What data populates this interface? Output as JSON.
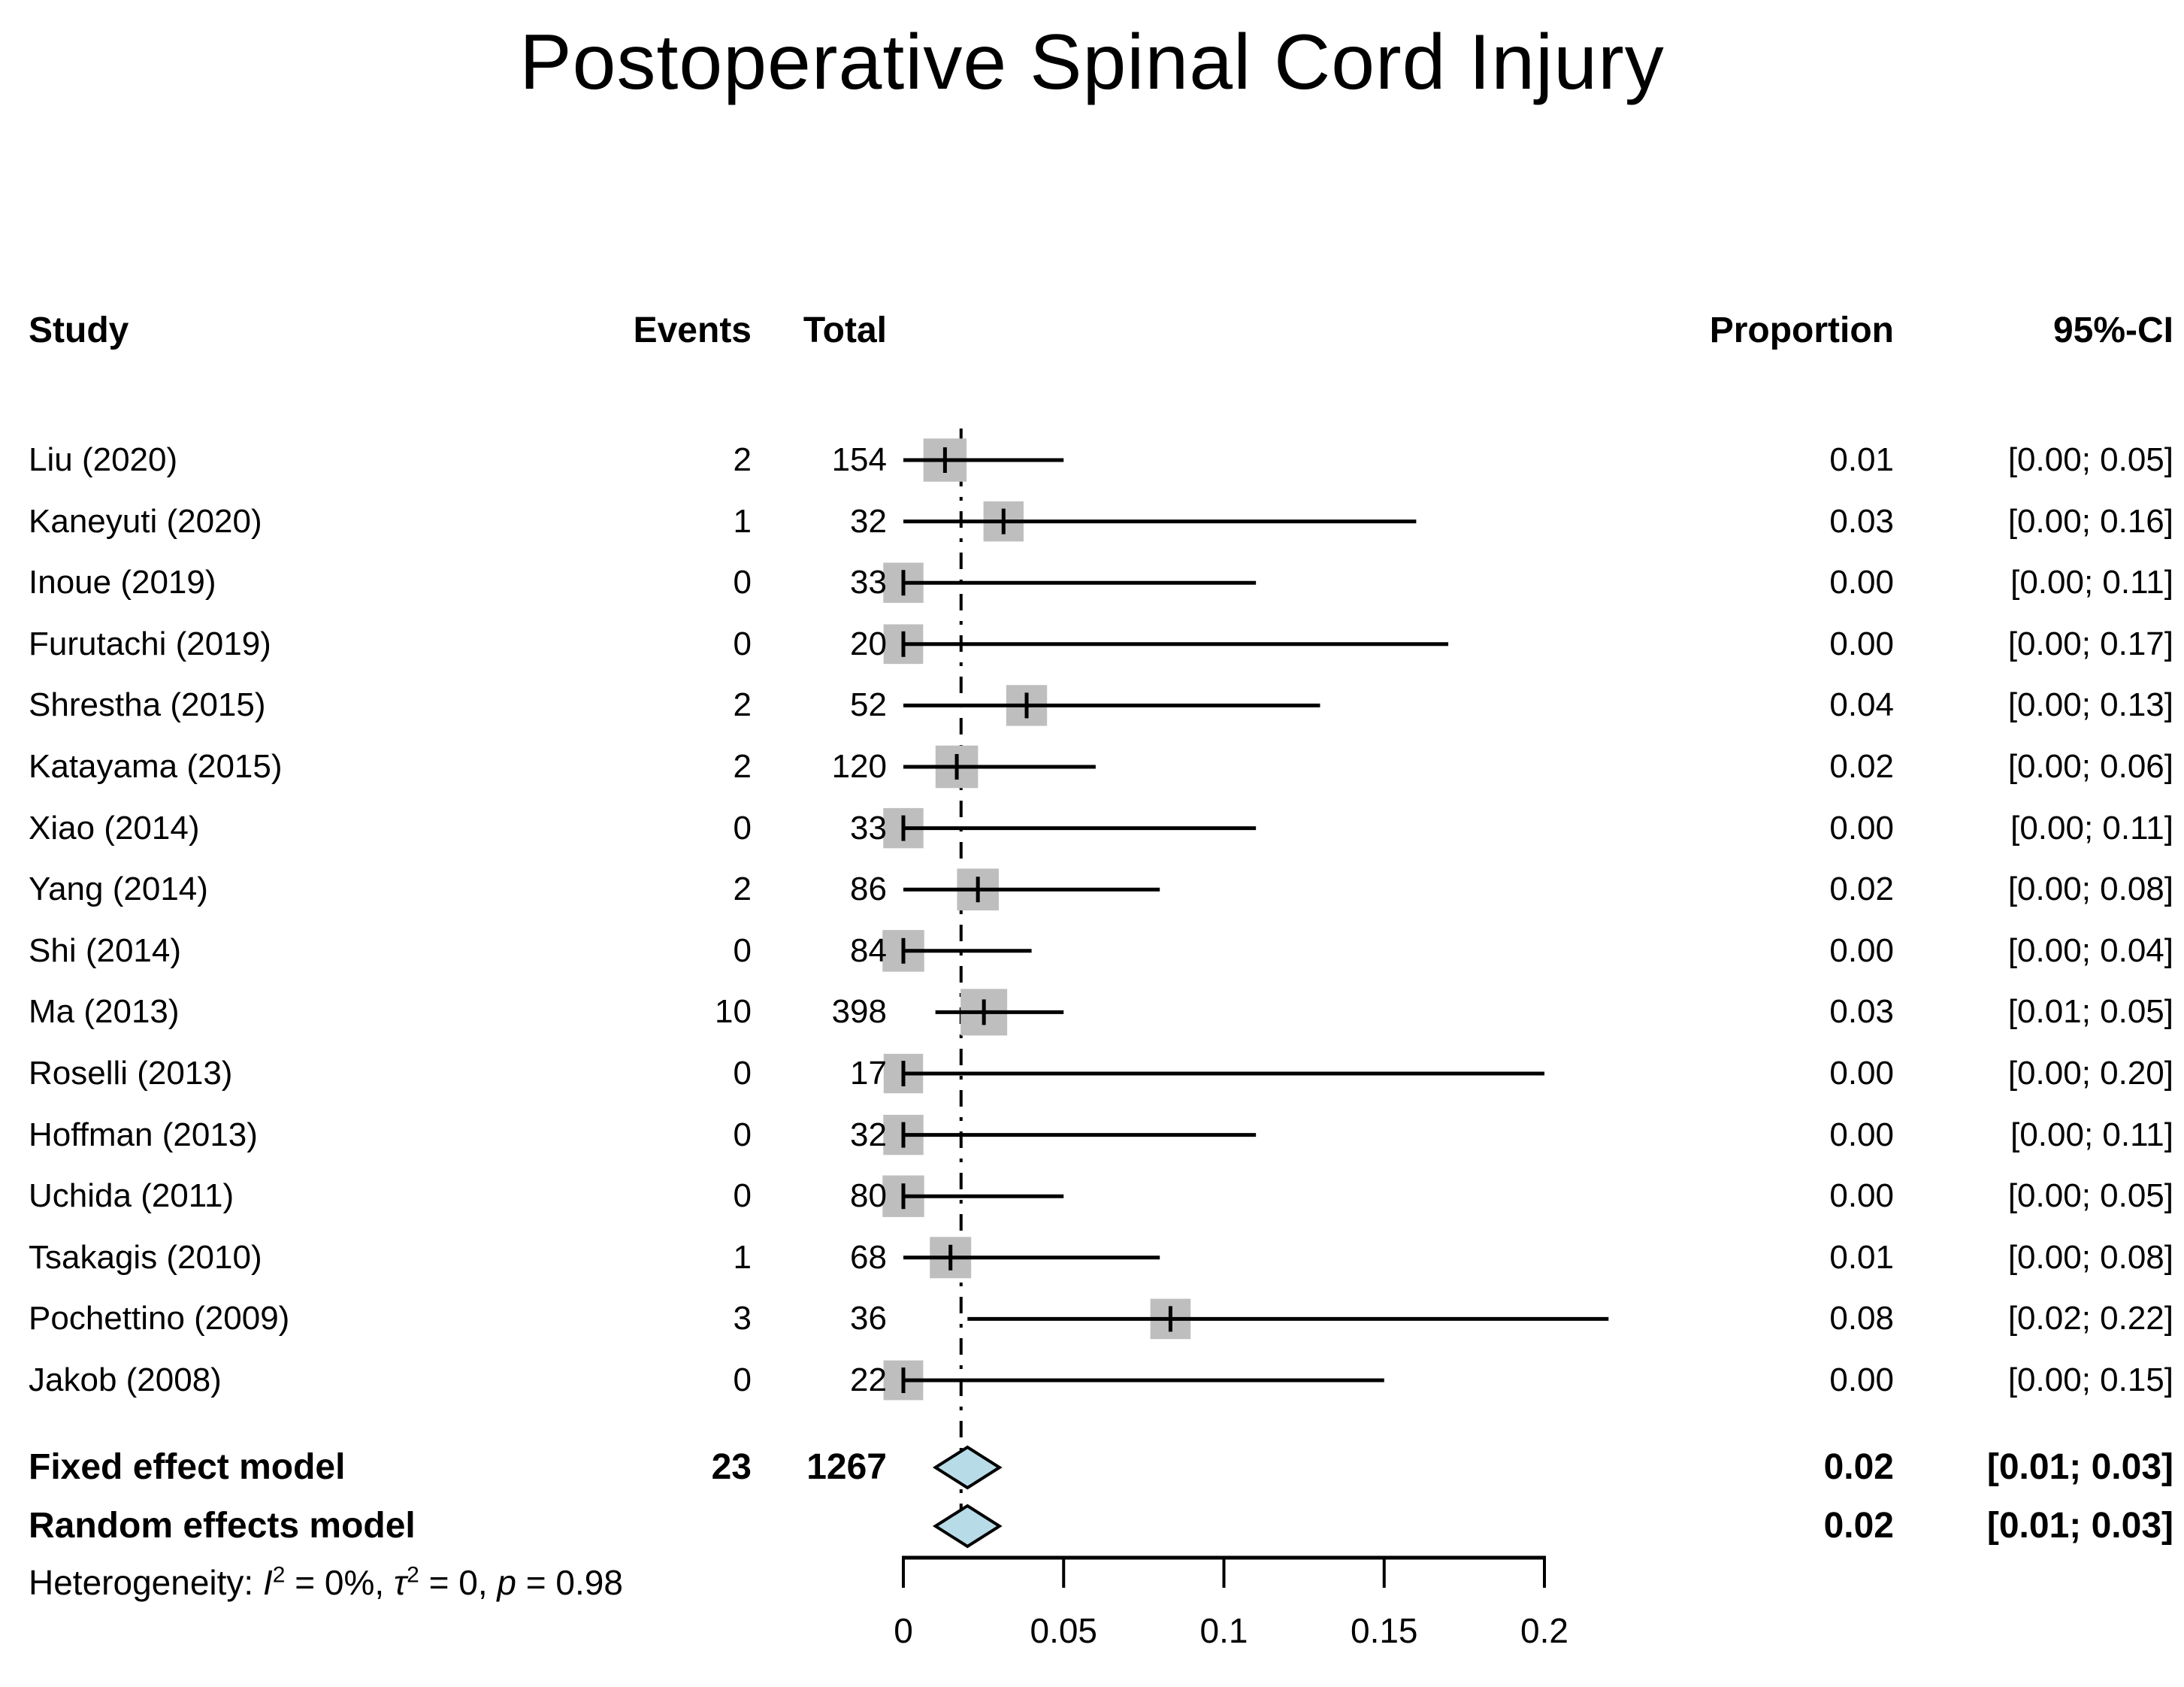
{
  "title": "Postoperative Spinal Cord Injury",
  "columns": {
    "study": "Study",
    "events": "Events",
    "total": "Total",
    "proportion": "Proportion",
    "ci": "95%-CI"
  },
  "chart_data": {
    "type": "forest",
    "xlabel": "Proportion",
    "axis": {
      "xlim": [
        0,
        0.2
      ],
      "tick_values": [
        0,
        0.05,
        0.1,
        0.15,
        0.2
      ],
      "tick_labels": [
        "0",
        "0.05",
        "0.1",
        "0.15",
        "0.2"
      ],
      "reference_line": 0.018,
      "grid": false
    },
    "studies": [
      {
        "label": "Liu (2020)",
        "events": 2,
        "total": 154,
        "proportion": 0.01,
        "ci_low": 0.0,
        "ci_high": 0.05,
        "proportion_text": "0.01",
        "ci_text": "[0.00; 0.05]"
      },
      {
        "label": "Kaneyuti (2020)",
        "events": 1,
        "total": 32,
        "proportion": 0.03,
        "ci_low": 0.0,
        "ci_high": 0.16,
        "proportion_text": "0.03",
        "ci_text": "[0.00; 0.16]"
      },
      {
        "label": "Inoue (2019)",
        "events": 0,
        "total": 33,
        "proportion": 0.0,
        "ci_low": 0.0,
        "ci_high": 0.11,
        "proportion_text": "0.00",
        "ci_text": "[0.00; 0.11]"
      },
      {
        "label": "Furutachi (2019)",
        "events": 0,
        "total": 20,
        "proportion": 0.0,
        "ci_low": 0.0,
        "ci_high": 0.17,
        "proportion_text": "0.00",
        "ci_text": "[0.00; 0.17]"
      },
      {
        "label": "Shrestha (2015)",
        "events": 2,
        "total": 52,
        "proportion": 0.04,
        "ci_low": 0.0,
        "ci_high": 0.13,
        "proportion_text": "0.04",
        "ci_text": "[0.00; 0.13]"
      },
      {
        "label": "Katayama (2015)",
        "events": 2,
        "total": 120,
        "proportion": 0.02,
        "ci_low": 0.0,
        "ci_high": 0.06,
        "proportion_text": "0.02",
        "ci_text": "[0.00; 0.06]"
      },
      {
        "label": "Xiao (2014)",
        "events": 0,
        "total": 33,
        "proportion": 0.0,
        "ci_low": 0.0,
        "ci_high": 0.11,
        "proportion_text": "0.00",
        "ci_text": "[0.00; 0.11]"
      },
      {
        "label": "Yang (2014)",
        "events": 2,
        "total": 86,
        "proportion": 0.02,
        "ci_low": 0.0,
        "ci_high": 0.08,
        "proportion_text": "0.02",
        "ci_text": "[0.00; 0.08]"
      },
      {
        "label": "Shi (2014)",
        "events": 0,
        "total": 84,
        "proportion": 0.0,
        "ci_low": 0.0,
        "ci_high": 0.04,
        "proportion_text": "0.00",
        "ci_text": "[0.00; 0.04]"
      },
      {
        "label": "Ma (2013)",
        "events": 10,
        "total": 398,
        "proportion": 0.03,
        "ci_low": 0.01,
        "ci_high": 0.05,
        "proportion_text": "0.03",
        "ci_text": "[0.01; 0.05]"
      },
      {
        "label": "Roselli (2013)",
        "events": 0,
        "total": 17,
        "proportion": 0.0,
        "ci_low": 0.0,
        "ci_high": 0.2,
        "proportion_text": "0.00",
        "ci_text": "[0.00; 0.20]"
      },
      {
        "label": "Hoffman (2013)",
        "events": 0,
        "total": 32,
        "proportion": 0.0,
        "ci_low": 0.0,
        "ci_high": 0.11,
        "proportion_text": "0.00",
        "ci_text": "[0.00; 0.11]"
      },
      {
        "label": "Uchida (2011)",
        "events": 0,
        "total": 80,
        "proportion": 0.0,
        "ci_low": 0.0,
        "ci_high": 0.05,
        "proportion_text": "0.00",
        "ci_text": "[0.00; 0.05]"
      },
      {
        "label": "Tsakagis (2010)",
        "events": 1,
        "total": 68,
        "proportion": 0.01,
        "ci_low": 0.0,
        "ci_high": 0.08,
        "proportion_text": "0.01",
        "ci_text": "[0.00; 0.08]"
      },
      {
        "label": "Pochettino (2009)",
        "events": 3,
        "total": 36,
        "proportion": 0.08,
        "ci_low": 0.02,
        "ci_high": 0.22,
        "proportion_text": "0.08",
        "ci_text": "[0.02; 0.22]"
      },
      {
        "label": "Jakob (2008)",
        "events": 0,
        "total": 22,
        "proportion": 0.0,
        "ci_low": 0.0,
        "ci_high": 0.15,
        "proportion_text": "0.00",
        "ci_text": "[0.00; 0.15]"
      }
    ],
    "summary": [
      {
        "label": "Fixed effect model",
        "events": 23,
        "total": 1267,
        "proportion": 0.02,
        "ci_low": 0.01,
        "ci_high": 0.03,
        "proportion_text": "0.02",
        "ci_text": "[0.01; 0.03]"
      },
      {
        "label": "Random effects model",
        "proportion": 0.02,
        "ci_low": 0.01,
        "ci_high": 0.03,
        "proportion_text": "0.02",
        "ci_text": "[0.01; 0.03]"
      }
    ],
    "heterogeneity": {
      "prefix": "Heterogeneity: ",
      "i_label": "I",
      "i_sup": "2",
      "i_value": " = 0%, ",
      "tau_label": "τ",
      "tau_sup": "2",
      "tau_value": " = 0, ",
      "p_label": "p",
      "p_value": " = 0.98"
    }
  },
  "colors": {
    "square": "#bebebe",
    "diamond_fill": "#b7dce8",
    "line": "#000000",
    "text": "#000000",
    "background": "#ffffff"
  }
}
